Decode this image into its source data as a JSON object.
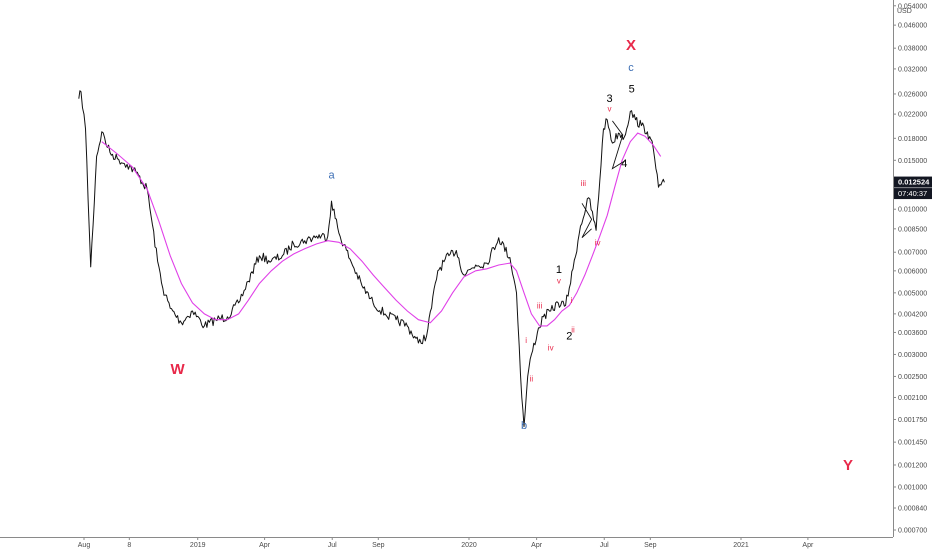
{
  "chart_data": {
    "type": "line",
    "currency": "USD",
    "scale": "log",
    "y_ticks": [
      "0.054000",
      "0.046000",
      "0.038000",
      "0.032000",
      "0.026000",
      "0.022000",
      "0.018000",
      "0.015000",
      "0.012524",
      "0.010000",
      "0.008500",
      "0.007000",
      "0.006000",
      "0.005000",
      "0.004200",
      "0.003600",
      "0.003000",
      "0.002500",
      "0.002100",
      "0.001750",
      "0.001450",
      "0.001200",
      "0.001000",
      "0.000840",
      "0.000700"
    ],
    "ylim": [
      0.0007,
      0.058
    ],
    "x_ticks": [
      "Aug",
      "8",
      "2019",
      "Apr",
      "Jul",
      "Sep",
      "2020",
      "Apr",
      "Jul",
      "Sep",
      "2021",
      "Apr"
    ],
    "last_price": "0.012524",
    "countdown": "07:40:37",
    "price_series": {
      "name": "",
      "x": [
        "2018-07-25",
        "2018-07-28",
        "2018-08-03",
        "2018-08-10",
        "2018-08-18",
        "2018-08-25",
        "2018-09-05",
        "2018-09-15",
        "2018-09-28",
        "2018-10-10",
        "2018-10-25",
        "2018-11-08",
        "2018-11-15",
        "2018-11-25",
        "2018-12-10",
        "2018-12-25",
        "2019-01-10",
        "2019-01-25",
        "2019-02-10",
        "2019-02-25",
        "2019-03-10",
        "2019-03-25",
        "2019-04-10",
        "2019-04-25",
        "2019-05-10",
        "2019-05-25",
        "2019-06-10",
        "2019-06-25",
        "2019-06-30",
        "2019-07-10",
        "2019-07-25",
        "2019-08-10",
        "2019-08-25",
        "2019-09-10",
        "2019-09-25",
        "2019-10-10",
        "2019-10-25",
        "2019-11-05",
        "2019-11-20",
        "2019-12-05",
        "2019-12-15",
        "2019-12-25",
        "2020-01-10",
        "2020-01-25",
        "2020-02-10",
        "2020-02-25",
        "2020-03-05",
        "2020-03-12",
        "2020-03-15",
        "2020-03-20",
        "2020-03-25",
        "2020-04-02",
        "2020-04-10",
        "2020-04-20",
        "2020-04-30",
        "2020-05-10",
        "2020-05-20",
        "2020-05-30",
        "2020-06-10",
        "2020-06-20",
        "2020-06-30",
        "2020-07-05",
        "2020-07-12",
        "2020-07-20",
        "2020-07-28",
        "2020-08-05",
        "2020-08-12",
        "2020-08-20",
        "2020-08-28",
        "2020-09-05",
        "2020-09-12",
        "2020-09-20"
      ],
      "values": [
        0.025,
        0.0265,
        0.0195,
        0.0062,
        0.0155,
        0.019,
        0.016,
        0.0152,
        0.0145,
        0.0136,
        0.0118,
        0.0065,
        0.0052,
        0.0044,
        0.0039,
        0.0043,
        0.0038,
        0.004,
        0.0041,
        0.0046,
        0.0055,
        0.0068,
        0.0065,
        0.0068,
        0.0075,
        0.0077,
        0.008,
        0.008,
        0.0107,
        0.0082,
        0.0066,
        0.0053,
        0.0046,
        0.0042,
        0.004,
        0.0038,
        0.0033,
        0.0035,
        0.006,
        0.0068,
        0.0071,
        0.0058,
        0.0063,
        0.0064,
        0.0079,
        0.0067,
        0.005,
        0.0021,
        0.00165,
        0.0025,
        0.003,
        0.0036,
        0.0041,
        0.0043,
        0.0046,
        0.0045,
        0.0061,
        0.0087,
        0.011,
        0.0084,
        0.0195,
        0.021,
        0.0173,
        0.0188,
        0.0182,
        0.0225,
        0.021,
        0.02,
        0.019,
        0.0165,
        0.012,
        0.0125
      ]
    },
    "ma_series": {
      "name": "",
      "x": [
        "2018-08-25",
        "2018-09-15",
        "2018-10-05",
        "2018-10-25",
        "2018-11-10",
        "2018-11-25",
        "2018-12-10",
        "2018-12-25",
        "2019-01-10",
        "2019-01-25",
        "2019-02-10",
        "2019-02-25",
        "2019-03-10",
        "2019-03-25",
        "2019-04-10",
        "2019-04-25",
        "2019-05-10",
        "2019-05-25",
        "2019-06-10",
        "2019-06-25",
        "2019-07-10",
        "2019-07-25",
        "2019-08-10",
        "2019-08-25",
        "2019-09-10",
        "2019-09-25",
        "2019-10-10",
        "2019-10-25",
        "2019-11-10",
        "2019-11-25",
        "2019-12-10",
        "2019-12-25",
        "2020-01-10",
        "2020-01-25",
        "2020-02-10",
        "2020-02-25",
        "2020-03-05",
        "2020-03-15",
        "2020-03-25",
        "2020-04-05",
        "2020-04-15",
        "2020-04-25",
        "2020-05-05",
        "2020-05-15",
        "2020-05-25",
        "2020-06-05",
        "2020-06-15",
        "2020-06-25",
        "2020-07-05",
        "2020-07-15",
        "2020-07-25",
        "2020-08-05",
        "2020-08-15",
        "2020-08-25",
        "2020-09-05",
        "2020-09-15"
      ],
      "values": [
        0.0175,
        0.0158,
        0.0142,
        0.0118,
        0.009,
        0.0068,
        0.0054,
        0.0046,
        0.0042,
        0.004,
        0.004,
        0.0042,
        0.0047,
        0.0054,
        0.006,
        0.0065,
        0.0069,
        0.0072,
        0.0075,
        0.0077,
        0.0076,
        0.0072,
        0.0065,
        0.0058,
        0.0052,
        0.0047,
        0.0043,
        0.004,
        0.0039,
        0.0043,
        0.005,
        0.0057,
        0.006,
        0.0061,
        0.0063,
        0.0064,
        0.006,
        0.005,
        0.0042,
        0.0038,
        0.0038,
        0.004,
        0.0043,
        0.0045,
        0.005,
        0.0058,
        0.0068,
        0.008,
        0.0095,
        0.012,
        0.015,
        0.0175,
        0.0188,
        0.0183,
        0.017,
        0.0155
      ]
    },
    "wave_labels": [
      {
        "text": "W",
        "color": "#e8294a",
        "date": "2018-12-05",
        "price": 0.00255,
        "size": "large"
      },
      {
        "text": "a",
        "color": "#3c6eb4",
        "date": "2019-06-30",
        "price": 0.0129,
        "size": "small"
      },
      {
        "text": "b",
        "color": "#3c6eb4",
        "date": "2020-03-15",
        "price": 0.00162,
        "size": "small"
      },
      {
        "text": "i",
        "color": "#e8294a",
        "date": "2020-03-18",
        "price": 0.0033,
        "size": "tiny"
      },
      {
        "text": "ii",
        "color": "#e8294a",
        "date": "2020-03-25",
        "price": 0.0024,
        "size": "tiny"
      },
      {
        "text": "iii",
        "color": "#e8294a",
        "date": "2020-04-05",
        "price": 0.0044,
        "size": "tiny"
      },
      {
        "text": "iv",
        "color": "#e8294a",
        "date": "2020-04-20",
        "price": 0.0031,
        "size": "tiny"
      },
      {
        "text": "v",
        "color": "#e8294a",
        "date": "2020-05-01",
        "price": 0.0054,
        "size": "tiny"
      },
      {
        "text": "1",
        "color": "#000000",
        "date": "2020-05-01",
        "price": 0.0059,
        "size": "small"
      },
      {
        "text": "2",
        "color": "#000000",
        "date": "2020-05-15",
        "price": 0.0034,
        "size": "small"
      },
      {
        "text": "i",
        "color": "#e8294a",
        "date": "2020-05-18",
        "price": 0.0046,
        "size": "tiny"
      },
      {
        "text": "ii",
        "color": "#e8294a",
        "date": "2020-05-20",
        "price": 0.0036,
        "size": "tiny"
      },
      {
        "text": "iii",
        "color": "#e8294a",
        "date": "2020-06-03",
        "price": 0.0121,
        "size": "tiny"
      },
      {
        "text": "iv",
        "color": "#e8294a",
        "date": "2020-06-22",
        "price": 0.0074,
        "size": "tiny"
      },
      {
        "text": "v",
        "color": "#e8294a",
        "date": "2020-07-08",
        "price": 0.0225,
        "size": "tiny"
      },
      {
        "text": "3",
        "color": "#000000",
        "date": "2020-07-08",
        "price": 0.0243,
        "size": "small"
      },
      {
        "text": "4",
        "color": "#000000",
        "date": "2020-07-28",
        "price": 0.0142,
        "size": "small"
      },
      {
        "text": "5",
        "color": "#000000",
        "date": "2020-08-07",
        "price": 0.0263,
        "size": "small"
      },
      {
        "text": "c",
        "color": "#3c6eb4",
        "date": "2020-08-06",
        "price": 0.0315,
        "size": "small"
      },
      {
        "text": "X",
        "color": "#e8294a",
        "date": "2020-08-06",
        "price": 0.0375,
        "size": "large"
      },
      {
        "text": "Y",
        "color": "#e8294a",
        "date": "2021-05-25",
        "price": 0.00115,
        "size": "large"
      }
    ]
  }
}
